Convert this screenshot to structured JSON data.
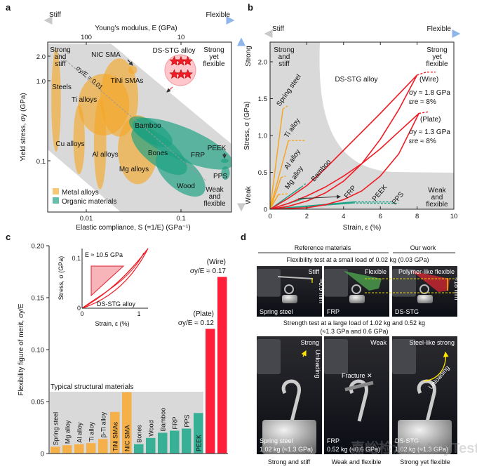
{
  "colors": {
    "metal": "#f5a623",
    "metal_fill": "rgba(245,166,35,0.62)",
    "organic": "#1ea386",
    "organic_fill": "rgba(28,160,130,0.68)",
    "dsstg": "#ee1c25",
    "gray": "#d9d9d9",
    "arrow": "#8fb5ea"
  },
  "panel_labels": [
    "a",
    "b",
    "c",
    "d"
  ],
  "chart_data": [
    {
      "panel": "a",
      "type": "scatter",
      "title": "",
      "xlabel": "Elastic compliance, S (=1/E) (GPa⁻¹)",
      "x2label": "Young's modulus, E (GPa)",
      "ylabel": "Yield stress, σy (GPa)",
      "xscale": "log",
      "yscale": "log",
      "xlim": [
        0.0039,
        0.34
      ],
      "ylim": [
        0.023,
        3.0
      ],
      "xticks": [
        "0.01",
        "0.1"
      ],
      "x2ticks": [
        "100",
        "10"
      ],
      "yticks": [
        "2.0",
        "1.0",
        "0.1"
      ],
      "arrow": {
        "left": "Stiff",
        "right": "Flexible"
      },
      "guide_line": "σy/E = 0.01",
      "corner_labels": {
        "top_left": [
          "Strong",
          "and",
          "stiff"
        ],
        "top_right": [
          "Strong",
          "yet",
          "flexible"
        ],
        "bottom_right": [
          "Weak",
          "and",
          "flexible"
        ]
      },
      "legend": [
        {
          "label": "Metal alloys",
          "group": "metal"
        },
        {
          "label": "Organic materials",
          "group": "organic"
        }
      ],
      "legend_position": "bottom-left",
      "regions": [
        {
          "label": "Steels",
          "group": "metal",
          "s": [
            0.0048,
            0.0048
          ],
          "sigma": [
            2.5,
            0.13
          ],
          "w": 0.05
        },
        {
          "label": "Cu alloys",
          "group": "metal",
          "s": [
            0.0084,
            0.0084
          ],
          "sigma": [
            0.5,
            0.068
          ],
          "w": 0.06
        },
        {
          "label": "Al alloys",
          "group": "metal",
          "s": [
            0.014,
            0.014
          ],
          "sigma": [
            0.6,
            0.044
          ],
          "w": 0.065
        },
        {
          "label": "Ti alloys",
          "group": "metal",
          "s": [
            0.0153,
            0.0153
          ],
          "sigma": [
            1.22,
            0.207
          ],
          "w": 0.27
        },
        {
          "label": "TiNi SMAs",
          "group": "metal",
          "s": [
            0.0223,
            0.0223
          ],
          "sigma": [
            1.9,
            0.2
          ],
          "w": 0.2
        },
        {
          "label": "NIC SMA",
          "group": "metal",
          "s": [
            0.031,
            0.031
          ],
          "sigma": [
            1.55,
            1.2
          ],
          "w": 0.045
        },
        {
          "label": "Mg alloys",
          "group": "metal",
          "s": [
            0.035,
            0.035
          ],
          "sigma": [
            0.37,
            0.051
          ],
          "w": 0.21
        },
        {
          "label": "FRP",
          "group": "organic",
          "s": [
            0.031,
            0.35
          ],
          "sigma": [
            0.3,
            0.089
          ],
          "w": 0.17
        },
        {
          "label": "Bamboo",
          "group": "organic",
          "s": [
            0.0288,
            0.08
          ],
          "sigma": [
            0.33,
            0.162
          ],
          "w": 0.11
        },
        {
          "label": "Bones",
          "group": "organic",
          "s": [
            0.031,
            0.112
          ],
          "sigma": [
            0.243,
            0.072
          ],
          "w": 0.15
        },
        {
          "label": "Wood",
          "group": "organic",
          "s": [
            0.057,
            0.172
          ],
          "sigma": [
            0.12,
            0.039
          ],
          "w": 0.16
        },
        {
          "label": "PEEK",
          "group": "organic",
          "s": [
            0.29,
            0.29
          ],
          "sigma": [
            0.106,
            0.094
          ],
          "w": 0.04
        },
        {
          "label": "PPS",
          "group": "organic",
          "s": [
            0.295,
            0.295
          ],
          "sigma": [
            0.085,
            0.058
          ],
          "w": 0.045
        }
      ],
      "dsstg": {
        "label": "DS-STG alloy",
        "points": [
          [
            0.085,
            1.75
          ],
          [
            0.1,
            1.75
          ],
          [
            0.118,
            1.75
          ],
          [
            0.085,
            1.2
          ],
          [
            0.1,
            1.2
          ],
          [
            0.118,
            1.2
          ]
        ]
      }
    },
    {
      "panel": "b",
      "type": "line",
      "xlabel": "Strain, ε (%)",
      "ylabel": "Stress, σ (GPa)",
      "xlim": [
        0,
        10
      ],
      "ylim": [
        0,
        2.27
      ],
      "xticks": [
        "0",
        "2",
        "4",
        "6",
        "8",
        "10"
      ],
      "yticks": [
        "0",
        "0.5",
        "1.0",
        "1.5",
        "2.0"
      ],
      "arrow": {
        "left": "Stiff",
        "right": "Flexible",
        "top": "Strong",
        "bottom": "Weak"
      },
      "corner_labels": {
        "top_left": [
          "Strong",
          "and",
          "stiff"
        ],
        "top_right": [
          "Strong",
          "yet",
          "flexible"
        ],
        "bottom_right": [
          "Weak",
          "and",
          "flexible"
        ]
      },
      "series": [
        {
          "name": "Spring steel",
          "group": "metal",
          "points": [
            [
              0,
              0
            ],
            [
              0.7,
              1.36
            ]
          ],
          "dashed": [
            [
              0.7,
              1.36
            ],
            [
              1.0,
              1.41
            ]
          ]
        },
        {
          "name": "Ti alloy",
          "group": "metal",
          "points": [
            [
              0,
              0
            ],
            [
              1.0,
              0.93
            ]
          ],
          "dashed": [
            [
              1.0,
              0.93
            ],
            [
              1.9,
              0.93
            ]
          ]
        },
        {
          "name": "Al alloy",
          "group": "metal",
          "points": [
            [
              0,
              0
            ],
            [
              0.6,
              0.43
            ]
          ],
          "dashed": [
            [
              0.6,
              0.43
            ],
            [
              0.85,
              0.45
            ]
          ]
        },
        {
          "name": "Mg alloy",
          "group": "metal",
          "points": [
            [
              0,
              0
            ],
            [
              0.45,
              0.2
            ]
          ],
          "dashed": [
            [
              0.45,
              0.2
            ],
            [
              1.0,
              0.21
            ]
          ]
        },
        {
          "name": "Bamboo",
          "group": "organic",
          "points": [
            [
              0,
              0
            ],
            [
              1.7,
              0.3
            ]
          ],
          "dashed": [
            [
              1.7,
              0.3
            ],
            [
              2.0,
              0.36
            ]
          ]
        },
        {
          "name": "FRP",
          "group": "organic",
          "points": [
            [
              0,
              0
            ],
            [
              1.9,
              0.15
            ]
          ],
          "dashed": [
            [
              1.9,
              0.15
            ],
            [
              2.3,
              0.15
            ]
          ]
        },
        {
          "name": "PEEK",
          "group": "organic",
          "points": [
            [
              0,
              0
            ],
            [
              4.6,
              0.1
            ]
          ],
          "dashed": [
            [
              4.6,
              0.1
            ],
            [
              6.6,
              0.1
            ]
          ]
        },
        {
          "name": "PPS",
          "group": "organic",
          "points": [
            [
              0,
              0
            ],
            [
              4.5,
              0.085
            ]
          ],
          "dashed": [
            [
              4.5,
              0.085
            ],
            [
              7.0,
              0.08
            ]
          ]
        },
        {
          "name": "DS-STG alloy (Wire)",
          "group": "dsstg",
          "points": [
            [
              0,
              0
            ],
            [
              1,
              0.15
            ],
            [
              2,
              0.32
            ],
            [
              3,
              0.55
            ],
            [
              4,
              0.8
            ],
            [
              5,
              1.05
            ],
            [
              6,
              1.3
            ],
            [
              7,
              1.56
            ],
            [
              8,
              1.82
            ],
            [
              7,
              1.35
            ],
            [
              6,
              0.95
            ],
            [
              5,
              0.62
            ],
            [
              4,
              0.38
            ],
            [
              3,
              0.22
            ],
            [
              2,
              0.11
            ],
            [
              1,
              0.04
            ],
            [
              0,
              0
            ]
          ],
          "dashed": [
            [
              8,
              1.82
            ],
            [
              8.5,
              1.86
            ],
            [
              9,
              1.86
            ]
          ]
        },
        {
          "name": "DS-STG alloy (Plate)",
          "group": "dsstg",
          "points": [
            [
              0,
              0
            ],
            [
              1,
              0.08
            ],
            [
              2,
              0.18
            ],
            [
              3,
              0.3
            ],
            [
              4,
              0.45
            ],
            [
              5,
              0.62
            ],
            [
              6,
              0.82
            ],
            [
              7,
              1.05
            ],
            [
              8.1,
              1.3
            ],
            [
              7,
              0.75
            ],
            [
              6,
              0.45
            ],
            [
              5,
              0.25
            ],
            [
              4,
              0.13
            ],
            [
              3,
              0.06
            ],
            [
              2,
              0.02
            ],
            [
              0,
              0
            ]
          ],
          "dashed": [
            [
              8.1,
              1.3
            ],
            [
              8.6,
              1.32
            ]
          ]
        }
      ],
      "annotations": {
        "dsstg": "DS-STG alloy",
        "wire": "(Wire)",
        "wire_sy": "σy ≈ 1.8 GPa",
        "wire_ere": "εre ≈ 8%",
        "plate": "(Plate)",
        "plate_sy": "σy ≈ 1.3 GPa",
        "plate_ere": "εre ≈ 8%"
      }
    },
    {
      "panel": "c",
      "type": "bar",
      "ylabel": "Flexibility figure of merit, σy/E",
      "ylim": [
        0,
        0.2
      ],
      "yticks": [
        "0",
        "0.05",
        "0.10",
        "0.15",
        "0.20"
      ],
      "group_label": "Typical structural materials",
      "categories": [
        "Spring steel",
        "Mg alloy",
        "Al alloy",
        "Ti alloy",
        "β-Ti alloy",
        "TiNi SMAs",
        "NIC SMA",
        "Bones",
        "Wood",
        "Bamboo",
        "FRP",
        "PPS",
        "PEEK",
        "Plate",
        "Wire"
      ],
      "groups": [
        "metal",
        "metal",
        "metal",
        "metal",
        "metal",
        "metal",
        "metal",
        "organic",
        "organic",
        "organic",
        "organic",
        "organic",
        "organic",
        "dsstg",
        "dsstg"
      ],
      "values": [
        0.0065,
        0.008,
        0.009,
        0.01,
        0.014,
        0.04,
        0.059,
        0.009,
        0.015,
        0.02,
        0.022,
        0.024,
        0.039,
        0.12,
        0.17
      ],
      "annotations": {
        "plate": "(Plate)",
        "plate_value": "σy/E ≈ 0.12",
        "wire": "(Wire)",
        "wire_value": "σy/E ≈ 0.17"
      },
      "inset": {
        "xlabel": "Strain, ε (%)",
        "ylabel": "Stress, σ (GPa)",
        "xticks": [
          "0",
          "1"
        ],
        "yticks": [
          "0",
          "0.1"
        ],
        "modulus": "E ≈ 10.5 GPa",
        "label": "DS-STG alloy"
      }
    }
  ],
  "panel_d": {
    "header_left": "Reference materials",
    "header_right": "Our work",
    "row1_title": "Flexibility test at a small load of 0.02 kg (0.03 GPa)",
    "row2_title": "Strength test at a large load of 1.02 kg and 0.52 kg",
    "row2_subtitle": "(≈1.3 GPa and 0.6 GPa)",
    "row1": [
      {
        "tag": "Stiff",
        "name": "Spring steel",
        "measure": "≈0.9 mm"
      },
      {
        "tag": "Flexible",
        "name": "FRP"
      },
      {
        "tag": "Polymer-like flexible",
        "name": "DS-STG",
        "measure": "≈18 mm"
      }
    ],
    "row2": [
      {
        "tag": "Strong",
        "name": "Spring steel",
        "load": "1.02 kg (≈1.3 GPa)",
        "note": "Unloading"
      },
      {
        "tag": "Weak",
        "name": "FRP",
        "load": "0.52 kg (≈0.6 GPa)",
        "note": "Fracture ✕"
      },
      {
        "tag": "Steel-like strong",
        "name": "DS-STG",
        "load": "1.02 kg (≈1.3 GPa)",
        "note": "Unloading"
      }
    ],
    "captions": [
      "Strong and stiff",
      "Weak and flexible",
      "Strong yet flexible"
    ]
  },
  "watermark": "嘉峪检测网 AnyTesting.com"
}
